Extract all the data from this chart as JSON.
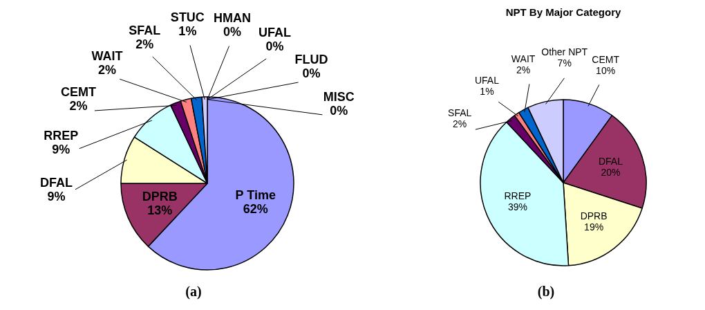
{
  "chart_data": [
    {
      "type": "pie",
      "categories": [
        "P Time",
        "DPRB",
        "DFAL",
        "RREP",
        "CEMT",
        "WAIT",
        "SFAL",
        "STUC",
        "HMAN",
        "UFAL",
        "FLUD",
        "MISC"
      ],
      "values": [
        62,
        13,
        9,
        9,
        2,
        2,
        2,
        1,
        0,
        0,
        0,
        0
      ],
      "value_labels": [
        "62%",
        "13%",
        "9%",
        "9%",
        "2%",
        "2%",
        "2%",
        "1%",
        "0%",
        "0%",
        "0%",
        "0%"
      ],
      "colors": [
        "#9999ff",
        "#993366",
        "#ffffcc",
        "#ccffff",
        "#660066",
        "#ff8080",
        "#0066cc",
        "#ccccff",
        "#000080",
        "#ff00ff",
        "#ffff00",
        "#00ffff"
      ],
      "legend": false,
      "annotations": [
        "(a)"
      ]
    },
    {
      "type": "pie",
      "title": "NPT By Major Category",
      "categories": [
        "CEMT",
        "DFAL",
        "DPRB",
        "RREP",
        "SFAL",
        "UFAL",
        "WAIT",
        "Other NPT"
      ],
      "values": [
        10,
        20,
        19,
        39,
        2,
        1,
        2,
        7
      ],
      "value_labels": [
        "10%",
        "20%",
        "19%",
        "39%",
        "2%",
        "1%",
        "2%",
        "7%"
      ],
      "colors": [
        "#9999ff",
        "#993366",
        "#ffffcc",
        "#ccffff",
        "#660066",
        "#ff8080",
        "#0066cc",
        "#ccccff"
      ],
      "legend": false,
      "annotations": [
        "(b)"
      ]
    }
  ]
}
